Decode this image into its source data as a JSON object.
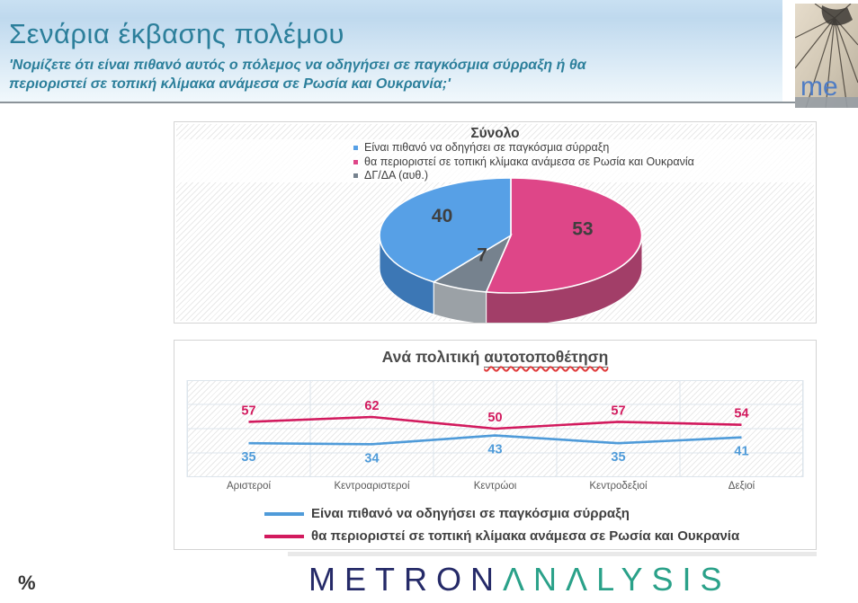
{
  "header": {
    "title": "Σενάρια έκβασης πολέμου",
    "subtitle": "'Νομίζετε ότι είναι πιθανό αυτός ο πόλεμος να οδηγήσει σε παγκόσμια σύρραξη ή θα\nπεριοριστεί σε τοπική κλίμακα ανάμεσα σε Ρωσία και Ουκρανία;'",
    "accent_color": "#2C7F9B",
    "photo_text": "me"
  },
  "footer": {
    "unit_label": "%",
    "brand": {
      "part1": "METRON",
      "part2": "ΛNΛLYSIS",
      "part1_color": "#252A68",
      "part2_color": "#2AA189"
    }
  },
  "chart_data": [
    {
      "type": "pie",
      "title": "Σύνολο",
      "unit": "%",
      "slices": [
        {
          "label": "Είναι πιθανό να οδηγήσει σε παγκόσμια σύρραξη",
          "value": 40,
          "color": "#57A0E6",
          "side_color": "#3C77B5"
        },
        {
          "label": "θα περιοριστεί σε τοπική κλίμακα ανάμεσα σε Ρωσία και Ουκρανία",
          "value": 53,
          "color": "#DE4688",
          "side_color": "#A23E68"
        },
        {
          "label": "ΔΓ/ΔΑ (αυθ.)",
          "value": 7,
          "color": "#76828E",
          "side_color": "#9BA1A6"
        }
      ],
      "clockwise_order_from_top": [
        1,
        2,
        0
      ],
      "label_color": "#3F3F3F",
      "style": "3d-pie",
      "legend_position": "top-left"
    },
    {
      "type": "line",
      "title_prefix": "Ανά πολιτική ",
      "title_underlined": "αυτοτοποθέτηση",
      "categories": [
        "Αριστεροί",
        "Κεντροαριστεροί",
        "Κεντρώοι",
        "Κεντροδεξιοί",
        "Δεξιοί"
      ],
      "series": [
        {
          "name": "Είναι πιθανό να οδηγήσει σε παγκόσμια σύρραξη",
          "color": "#4F9BD9",
          "values": [
            35,
            34,
            43,
            35,
            41
          ],
          "label_position": "below"
        },
        {
          "name": "θα περιοριστεί σε τοπική κλίμακα ανάμεσα σε Ρωσία και Ουκρανία",
          "color": "#D21A5E",
          "values": [
            57,
            62,
            50,
            57,
            54
          ],
          "label_position": "above"
        }
      ],
      "ylim": [
        0,
        100
      ],
      "grid": true,
      "legend_position": "bottom-left"
    }
  ]
}
